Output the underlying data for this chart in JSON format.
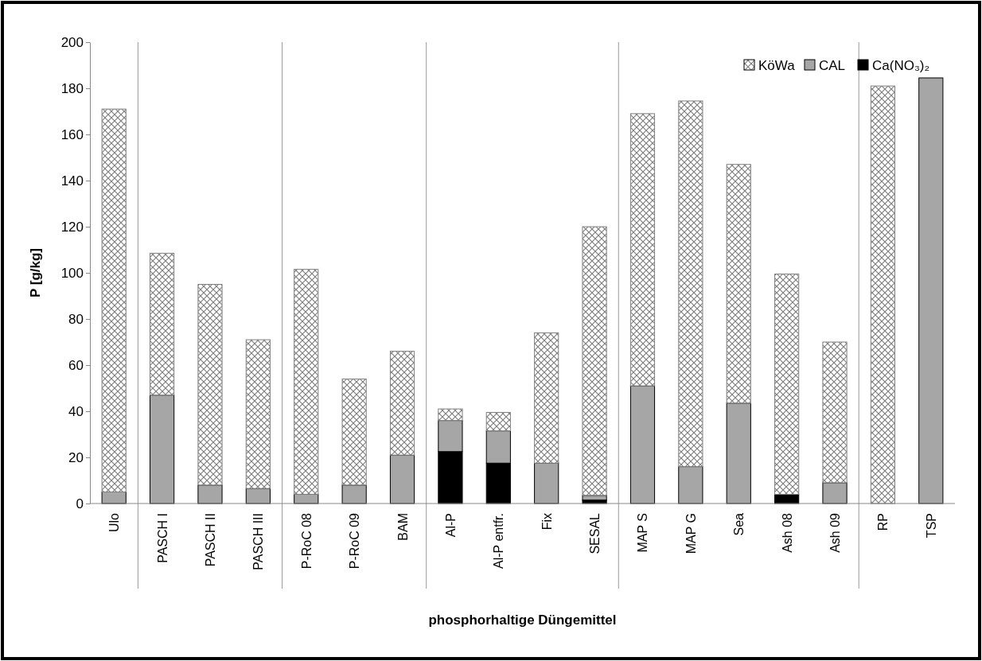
{
  "chart_data": {
    "type": "bar",
    "stacked": true,
    "xlabel": "phosphorhaltige Düngemittel",
    "ylabel": "P [g/kg]",
    "categories": [
      "Ulo",
      "PASCH I",
      "PASCH II",
      "PASCH III",
      "P-RoC 08",
      "P-RoC 09",
      "BAM",
      "Al-P",
      "Al-P entfr.",
      "Fix",
      "SESAL",
      "MAP S",
      "MAP G",
      "Sea",
      "Ash 08",
      "Ash 09",
      "RP",
      "TSP"
    ],
    "series": [
      {
        "name": "Ca(NO₃)₂",
        "color": "#000000",
        "values": [
          0,
          0,
          0,
          0,
          0,
          0,
          0,
          22.5,
          17.5,
          0,
          1.5,
          0,
          0,
          0,
          4,
          0,
          0,
          0
        ]
      },
      {
        "name": "CAL",
        "color": "#a6a6a6",
        "values": [
          5,
          47,
          8,
          6.5,
          4,
          8,
          21,
          13.5,
          14,
          17.5,
          2,
          51,
          16,
          43.5,
          null,
          9,
          0,
          184.5
        ]
      },
      {
        "name": "KöWa",
        "color": "#808080",
        "values": [
          166,
          61.5,
          87,
          64.5,
          97.5,
          46,
          45,
          5,
          8,
          56.5,
          116.5,
          118,
          158.5,
          103.5,
          95.5,
          61,
          181,
          0
        ]
      }
    ],
    "ylim": [
      0,
      200
    ],
    "yticks": [
      0,
      20,
      40,
      60,
      80,
      100,
      120,
      140,
      160,
      180,
      200
    ],
    "grid": false,
    "legend": "top right"
  }
}
